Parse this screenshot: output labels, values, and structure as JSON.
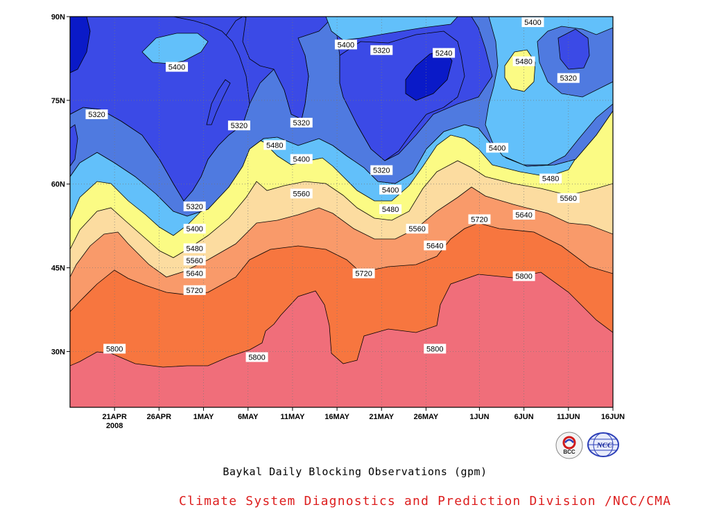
{
  "chart_data": {
    "type": "heatmap",
    "subtype": "filled-contour time-latitude",
    "title": "Baykal Daily Blocking Observations (gpm)",
    "xlabel": "",
    "ylabel": "",
    "x_ticks": [
      "21APR",
      "26APR",
      "1MAY",
      "6MAY",
      "11MAY",
      "16MAY",
      "21MAY",
      "26MAY",
      "1JUN",
      "6JUN",
      "11JUN",
      "16JUN"
    ],
    "x_year_label": "2008",
    "y_ticks": [
      "90N",
      "75N",
      "60N",
      "45N",
      "30N"
    ],
    "ylim": [
      20,
      90
    ],
    "grid": "dotted",
    "contour_levels": [
      5240,
      5320,
      5400,
      5480,
      5560,
      5640,
      5720,
      5800
    ],
    "fill_colors": [
      "#0a1ac8",
      "#3b4ae6",
      "#4f7ae0",
      "#62c0fa",
      "#fbfb84",
      "#fcdca0",
      "#f99a6a",
      "#f7763f",
      "#f06e7a"
    ],
    "contour_labels": [
      {
        "date": "Apr 19",
        "lat": 72.5,
        "value": "5320"
      },
      {
        "date": "Apr 28",
        "lat": 81,
        "value": "5400"
      },
      {
        "date": "May 5",
        "lat": 70.5,
        "value": "5320"
      },
      {
        "date": "May 12",
        "lat": 71,
        "value": "5320"
      },
      {
        "date": "May 9",
        "lat": 67,
        "value": "5480"
      },
      {
        "date": "May 12",
        "lat": 64.5,
        "value": "5400"
      },
      {
        "date": "May 12",
        "lat": 58.3,
        "value": "5560"
      },
      {
        "date": "May 17",
        "lat": 85,
        "value": "5400"
      },
      {
        "date": "May 21",
        "lat": 84,
        "value": "5320"
      },
      {
        "date": "May 28",
        "lat": 83.5,
        "value": "5240"
      },
      {
        "date": "May 21",
        "lat": 62.5,
        "value": "5320"
      },
      {
        "date": "May 22",
        "lat": 59,
        "value": "5400"
      },
      {
        "date": "May 22",
        "lat": 55.5,
        "value": "5480"
      },
      {
        "date": "May 25",
        "lat": 52,
        "value": "5560"
      },
      {
        "date": "May 27",
        "lat": 49,
        "value": "5640"
      },
      {
        "date": "Jun 1",
        "lat": 53.7,
        "value": "5720"
      },
      {
        "date": "Jun 3",
        "lat": 66.5,
        "value": "5400"
      },
      {
        "date": "Jun 7",
        "lat": 89,
        "value": "5400"
      },
      {
        "date": "Jun 6",
        "lat": 82,
        "value": "5480"
      },
      {
        "date": "Jun 11",
        "lat": 79,
        "value": "5320"
      },
      {
        "date": "Jun 9",
        "lat": 61,
        "value": "5480"
      },
      {
        "date": "Jun 11",
        "lat": 57.5,
        "value": "5560"
      },
      {
        "date": "Jun 6",
        "lat": 54.5,
        "value": "5640"
      },
      {
        "date": "Jun 6",
        "lat": 43.5,
        "value": "5800"
      },
      {
        "date": "Apr 30",
        "lat": 56,
        "value": "5320"
      },
      {
        "date": "Apr 30",
        "lat": 52,
        "value": "5400"
      },
      {
        "date": "Apr 30",
        "lat": 48.5,
        "value": "5480"
      },
      {
        "date": "Apr 30",
        "lat": 46.3,
        "value": "5560"
      },
      {
        "date": "Apr 30",
        "lat": 44,
        "value": "5640"
      },
      {
        "date": "Apr 30",
        "lat": 41,
        "value": "5720"
      },
      {
        "date": "Apr 21",
        "lat": 30.5,
        "value": "5800"
      },
      {
        "date": "May 7",
        "lat": 29,
        "value": "5800"
      },
      {
        "date": "May 19",
        "lat": 44,
        "value": "5720"
      },
      {
        "date": "May 27",
        "lat": 30.5,
        "value": "5800"
      }
    ]
  },
  "caption_title": "Baykal Daily Blocking Observations (gpm)",
  "caption_credit": "Climate System Diagnostics and Prediction Division /NCC/CMA",
  "logos": [
    {
      "name": "BCC",
      "text": "BCC",
      "color": "#d11a1a"
    },
    {
      "name": "NCC",
      "text": "NCC",
      "color": "#2c3fb8"
    }
  ]
}
